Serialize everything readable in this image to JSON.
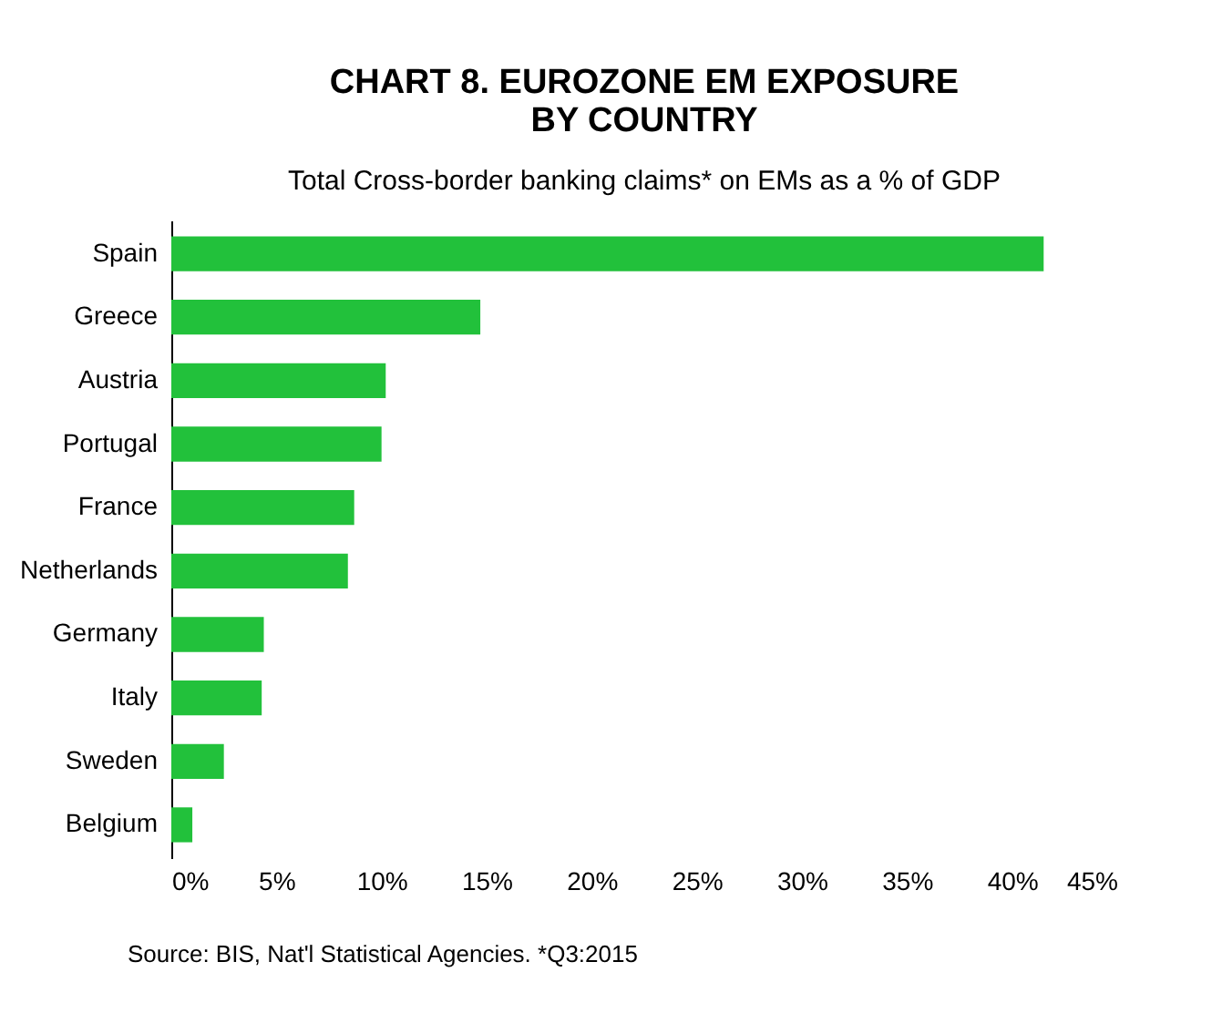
{
  "chart_data": {
    "type": "bar",
    "orientation": "horizontal",
    "title": "CHART 8. EUROZONE EM EXPOSURE\nBY COUNTRY",
    "subtitle": "Total Cross-border banking claims* on EMs as a % of GDP",
    "categories": [
      "Spain",
      "Greece",
      "Austria",
      "Portugal",
      "France",
      "Netherlands",
      "Germany",
      "Italy",
      "Sweden",
      "Belgium"
    ],
    "values": [
      41.5,
      14.7,
      10.2,
      10.0,
      8.7,
      8.4,
      4.4,
      4.3,
      2.5,
      1.0
    ],
    "color": "#22c13b",
    "xlim": [
      0,
      45
    ],
    "xticks": [
      {
        "value": 0,
        "label": "0%"
      },
      {
        "value": 5,
        "label": "5%"
      },
      {
        "value": 10,
        "label": "10%"
      },
      {
        "value": 15,
        "label": "15%"
      },
      {
        "value": 20,
        "label": "20%"
      },
      {
        "value": 25,
        "label": "25%"
      },
      {
        "value": 30,
        "label": "30%"
      },
      {
        "value": 35,
        "label": "35%"
      },
      {
        "value": 40,
        "label": "40%"
      },
      {
        "value": 45,
        "label": "45%"
      }
    ],
    "grid": false,
    "annotations": [
      "Source: BIS, Nat'l Statistical Agencies. *Q3:2015"
    ]
  }
}
